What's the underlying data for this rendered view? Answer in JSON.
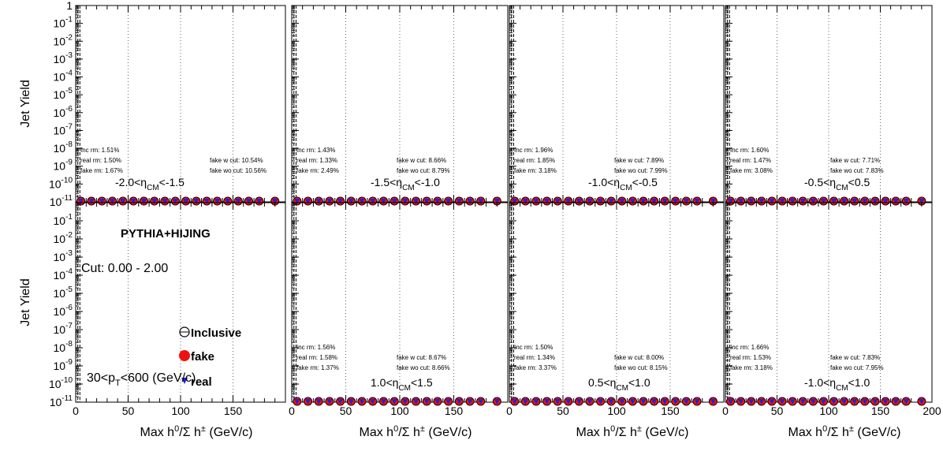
{
  "chart_data": {
    "type": "scatter",
    "figure": {
      "ylabel": "Jet Yield",
      "xlabel_main": "Max h",
      "xlabel_sup0": "0",
      "xlabel_sep": "/Σ h",
      "xlabel_suppm": "±",
      "xlabel_unit": " (GeV/c)",
      "x_range": [
        0,
        200
      ],
      "y_range": [
        1e-11,
        1
      ],
      "log_y": true,
      "x_ticks": [
        "0",
        "50",
        "100",
        "150",
        "200"
      ],
      "y_ticks": [
        "10",
        "10",
        "10",
        "10",
        "10",
        "10",
        "10",
        "10",
        "10",
        "10",
        "10",
        "1"
      ],
      "y_tick_exponents": [
        "-11",
        "-10",
        "-9",
        "-8",
        "-7",
        "-6",
        "-5",
        "-4",
        "-3",
        "-2",
        "-1",
        ""
      ],
      "dashed_lines_x": [
        2,
        4
      ],
      "grid_x": [
        50,
        100,
        150
      ],
      "legend": {
        "title": "PYTHIA+HIJING",
        "cut": "Cut: 0.00 - 2.00",
        "pt": "30<p",
        "pt_sub": "T",
        "pt_rest": "<600 (GeV/c)",
        "entries": [
          "Inclusive",
          "fake",
          "real"
        ]
      },
      "series_colors": {
        "inclusive": "#000000",
        "fake": "#ee1111",
        "real": "#2222cc"
      },
      "series_markers": {
        "inclusive": "open-circle",
        "fake": "filled-circle",
        "real": "triangle-down"
      },
      "points_x": [
        5,
        15,
        25,
        35,
        45,
        55,
        65,
        75,
        85,
        95,
        105,
        115,
        125,
        135,
        145,
        155,
        165,
        175,
        190
      ]
    },
    "panels": [
      {
        "row": 0,
        "col": 0,
        "eta_lo": "-2.0<η",
        "eta_sub": "CM",
        "eta_hi": "<-1.5",
        "inc": "Inc rm: 1.51%",
        "real": "real rm: 1.50%",
        "fake": "fake rm: 1.67%",
        "fw": "fake w cut: 10.54%",
        "fwo": "fake wo cut: 10.56%"
      },
      {
        "row": 0,
        "col": 1,
        "eta_lo": "-1.5<η",
        "eta_sub": "CM",
        "eta_hi": "<-1.0",
        "inc": "Inc rm: 1.43%",
        "real": "real rm: 1.33%",
        "fake": "fake rm: 2.49%",
        "fw": "fake w cut: 8.66%",
        "fwo": "fake wo cut: 8.79%"
      },
      {
        "row": 0,
        "col": 2,
        "eta_lo": "-1.0<η",
        "eta_sub": "CM",
        "eta_hi": "<-0.5",
        "inc": "Inc rm: 1.96%",
        "real": "real rm: 1.85%",
        "fake": "fake rm: 3.18%",
        "fw": "fake w cut: 7.89%",
        "fwo": "fake wo cut: 7.99%"
      },
      {
        "row": 0,
        "col": 3,
        "eta_lo": "-0.5<η",
        "eta_sub": "CM",
        "eta_hi": "<0.5",
        "inc": "Inc rm: 1.60%",
        "real": "real rm: 1.47%",
        "fake": "fake rm: 3.08%",
        "fw": "fake w cut: 7.71%",
        "fwo": "fake wo cut: 7.83%"
      },
      {
        "row": 1,
        "col": 0,
        "legend": true
      },
      {
        "row": 1,
        "col": 1,
        "eta_lo": "1.0<η",
        "eta_sub": "CM",
        "eta_hi": "<1.5",
        "inc": "Inc rm: 1.56%",
        "real": "real rm: 1.58%",
        "fake": "fake rm: 1.37%",
        "fw": "fake w cut: 8.67%",
        "fwo": "fake wo cut: 8.66%"
      },
      {
        "row": 1,
        "col": 2,
        "eta_lo": "0.5<η",
        "eta_sub": "CM",
        "eta_hi": "<1.0",
        "inc": "Inc rm: 1.50%",
        "real": "real rm: 1.34%",
        "fake": "fake rm: 3.37%",
        "fw": "fake w cut: 8.00%",
        "fwo": "fake wo cut: 8.15%"
      },
      {
        "row": 1,
        "col": 3,
        "eta_lo": "-1.0<η",
        "eta_sub": "CM",
        "eta_hi": "<1.0",
        "inc": "Inc rm: 1.66%",
        "real": "real rm: 1.53%",
        "fake": "fake rm: 3.18%",
        "fw": "fake w cut: 7.83%",
        "fwo": "fake wo cut: 7.95%"
      }
    ]
  }
}
